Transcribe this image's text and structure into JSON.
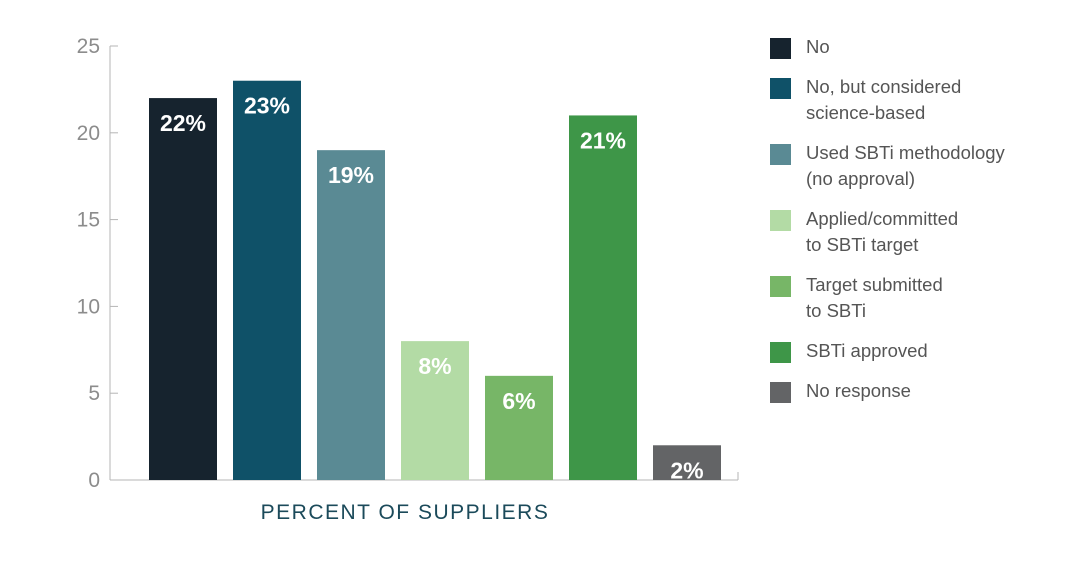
{
  "chart_data": {
    "type": "bar",
    "categories": [
      "No",
      "No, but considered\nscience-based",
      "Used SBTi methodology\n(no approval)",
      "Applied/committed\nto SBTi target",
      "Target submitted\nto SBTi",
      "SBTi approved",
      "No response"
    ],
    "values": [
      22,
      23,
      19,
      8,
      6,
      21,
      2
    ],
    "data_labels": [
      "22%",
      "23%",
      "19%",
      "8%",
      "6%",
      "21%",
      "2%"
    ],
    "colors": [
      "#16232e",
      "#0f5168",
      "#5a8a94",
      "#b3dba5",
      "#77b667",
      "#3e9648",
      "#636466"
    ],
    "yticks": [
      "0",
      "5",
      "10",
      "15",
      "20",
      "25"
    ],
    "ylim": [
      0,
      25
    ],
    "xlabel": "PERCENT OF SUPPLIERS",
    "legend_position": "right",
    "grid": false
  }
}
